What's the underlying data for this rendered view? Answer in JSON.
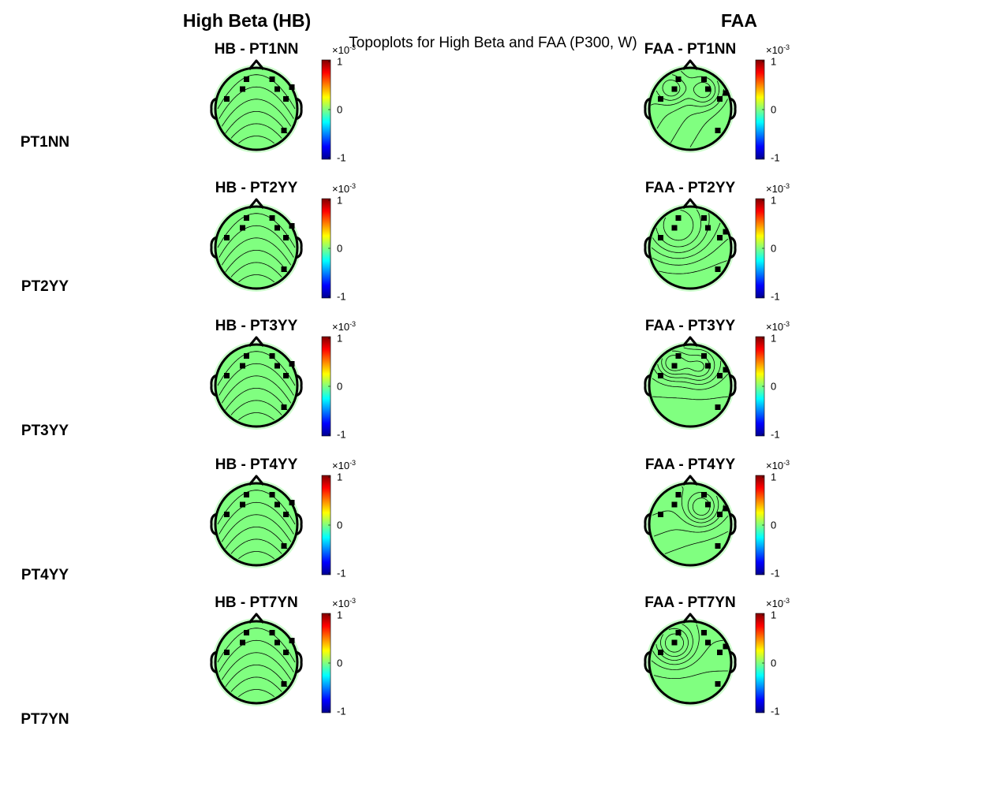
{
  "chart_data": {
    "type": "heatmap",
    "title": "Topoplots for High Beta and FAA (P300, W)",
    "columns": [
      {
        "key": "hb",
        "heading": "High Beta (HB)",
        "panel_prefix": "HB"
      },
      {
        "key": "faa",
        "heading": "FAA",
        "panel_prefix": "FAA"
      }
    ],
    "rows": [
      "PT1NN",
      "PT2YY",
      "PT3YY",
      "PT4YY",
      "PT7YN"
    ],
    "panels": [
      {
        "title": "HB - PT1NN",
        "column": "hb",
        "row": "PT1NN",
        "field": "hb"
      },
      {
        "title": "FAA - PT1NN",
        "column": "faa",
        "row": "PT1NN",
        "field": "faa1"
      },
      {
        "title": "HB - PT2YY",
        "column": "hb",
        "row": "PT2YY",
        "field": "hb"
      },
      {
        "title": "FAA - PT2YY",
        "column": "faa",
        "row": "PT2YY",
        "field": "faa2"
      },
      {
        "title": "HB - PT3YY",
        "column": "hb",
        "row": "PT3YY",
        "field": "hb"
      },
      {
        "title": "FAA - PT3YY",
        "column": "faa",
        "row": "PT3YY",
        "field": "faa3"
      },
      {
        "title": "HB - PT4YY",
        "column": "hb",
        "row": "PT4YY",
        "field": "hb"
      },
      {
        "title": "FAA - PT4YY",
        "column": "faa",
        "row": "PT4YY",
        "field": "faa4"
      },
      {
        "title": "HB - PT7YN",
        "column": "hb",
        "row": "PT7YN",
        "field": "hb"
      },
      {
        "title": "FAA - PT7YN",
        "column": "faa",
        "row": "PT7YN",
        "field": "faa5"
      }
    ],
    "colorbar": {
      "colormap": "jet",
      "ticks": [
        "1",
        "0",
        "-1"
      ],
      "multiplier_base": "×10",
      "multiplier_exponent": "-3"
    },
    "map_fill_color": "#80ff80",
    "contour_color": "#000000",
    "electrode_marker": "square"
  }
}
